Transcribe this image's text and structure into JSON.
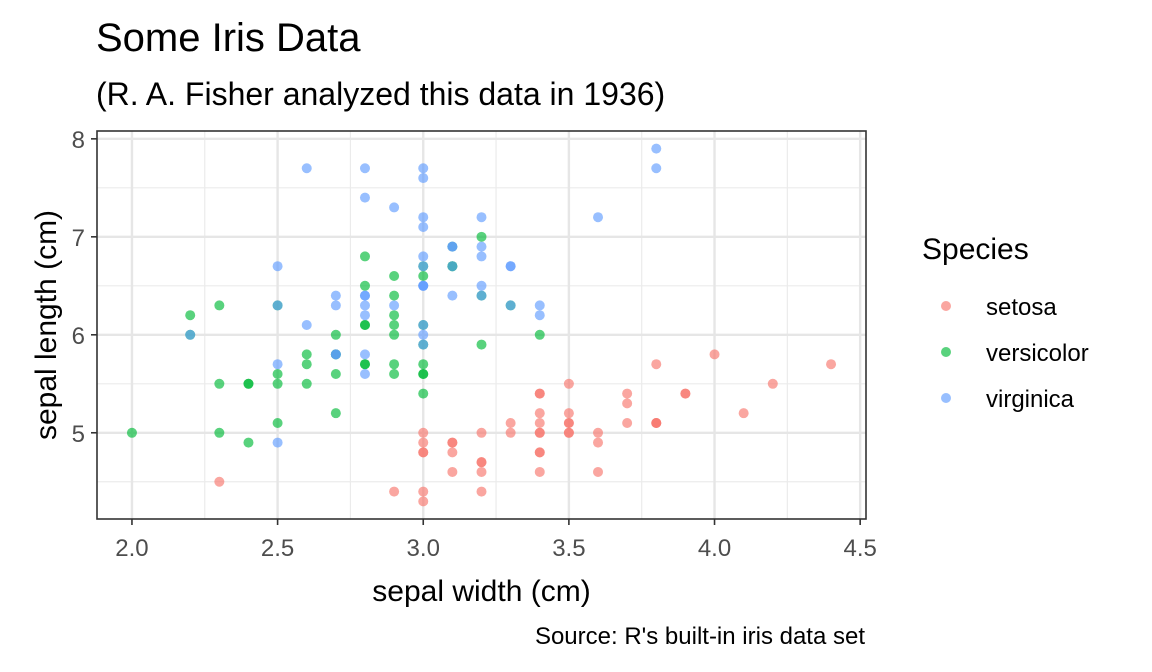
{
  "chart_data": {
    "type": "scatter",
    "title": "Some Iris Data",
    "subtitle": "(R. A. Fisher analyzed this data in 1936)",
    "caption": "Source: R's built-in iris data set",
    "xlabel": "sepal width (cm)",
    "ylabel": "sepal length (cm)",
    "xlim": [
      1.88,
      4.52
    ],
    "ylim": [
      4.12,
      8.08
    ],
    "x_ticks": [
      2.0,
      2.5,
      3.0,
      3.5,
      4.0,
      4.5
    ],
    "x_tick_labels": [
      "2.0",
      "2.5",
      "3.0",
      "3.5",
      "4.0",
      "4.5"
    ],
    "y_ticks": [
      5,
      6,
      7,
      8
    ],
    "y_tick_labels": [
      "5",
      "6",
      "7",
      "8"
    ],
    "grid": true,
    "legend": {
      "title": "Species",
      "position": "right"
    },
    "series": [
      {
        "name": "setosa",
        "color": "#F8766D",
        "x": [
          3.5,
          3.0,
          3.2,
          3.1,
          3.6,
          3.9,
          3.4,
          3.4,
          2.9,
          3.1,
          3.7,
          3.4,
          3.0,
          3.0,
          4.0,
          4.4,
          3.9,
          3.5,
          3.8,
          3.8,
          3.4,
          3.7,
          3.6,
          3.3,
          3.4,
          3.0,
          3.4,
          3.5,
          3.4,
          3.2,
          3.1,
          3.4,
          4.1,
          4.2,
          3.1,
          3.2,
          3.5,
          3.6,
          3.0,
          3.4,
          3.5,
          2.3,
          3.2,
          3.5,
          3.8,
          3.0,
          3.8,
          3.2,
          3.7,
          3.3
        ],
        "y": [
          5.1,
          4.9,
          4.7,
          4.6,
          5.0,
          5.4,
          4.6,
          5.0,
          4.4,
          4.9,
          5.4,
          4.8,
          4.8,
          4.3,
          5.8,
          5.7,
          5.4,
          5.1,
          5.7,
          5.1,
          5.4,
          5.1,
          4.6,
          5.1,
          4.8,
          5.0,
          5.0,
          5.2,
          5.2,
          4.7,
          4.8,
          5.4,
          5.2,
          5.5,
          4.9,
          5.0,
          5.5,
          4.9,
          4.4,
          5.1,
          5.0,
          4.5,
          4.4,
          5.0,
          5.1,
          4.8,
          5.1,
          4.6,
          5.3,
          5.0
        ]
      },
      {
        "name": "versicolor",
        "color": "#00BA38",
        "x": [
          3.2,
          3.2,
          3.1,
          2.3,
          2.8,
          2.8,
          3.3,
          2.4,
          2.9,
          2.7,
          2.0,
          3.0,
          2.2,
          2.9,
          2.9,
          3.1,
          3.0,
          2.7,
          2.2,
          2.5,
          3.2,
          2.8,
          2.5,
          2.8,
          2.9,
          3.0,
          2.8,
          3.0,
          2.9,
          2.6,
          2.4,
          2.4,
          2.7,
          2.7,
          3.0,
          3.4,
          3.1,
          2.3,
          3.0,
          2.5,
          2.6,
          3.0,
          2.6,
          2.3,
          2.7,
          3.0,
          2.9,
          2.9,
          2.5,
          2.8
        ],
        "y": [
          7.0,
          6.4,
          6.9,
          5.5,
          6.5,
          5.7,
          6.3,
          4.9,
          6.6,
          5.2,
          5.0,
          5.9,
          6.0,
          6.1,
          5.6,
          6.7,
          5.6,
          5.8,
          6.2,
          5.6,
          5.9,
          6.1,
          6.3,
          6.1,
          6.4,
          6.6,
          6.8,
          6.7,
          6.0,
          5.7,
          5.5,
          5.5,
          5.8,
          6.0,
          5.4,
          6.0,
          6.7,
          6.3,
          5.6,
          5.5,
          5.5,
          6.1,
          5.8,
          5.0,
          5.6,
          5.7,
          5.7,
          6.2,
          5.1,
          5.7
        ]
      },
      {
        "name": "virginica",
        "color": "#619CFF",
        "x": [
          3.3,
          2.7,
          3.0,
          2.9,
          3.0,
          3.0,
          2.5,
          2.9,
          2.5,
          3.6,
          3.2,
          2.7,
          3.0,
          2.5,
          2.8,
          3.2,
          3.0,
          3.8,
          2.6,
          2.2,
          3.2,
          2.8,
          2.8,
          2.7,
          3.3,
          3.2,
          2.8,
          3.0,
          2.8,
          3.0,
          2.8,
          3.8,
          2.8,
          2.8,
          2.6,
          3.0,
          3.4,
          3.1,
          3.0,
          3.1,
          3.1,
          3.1,
          2.7,
          3.2,
          3.3,
          3.0,
          2.5,
          3.0,
          3.4,
          3.0
        ],
        "y": [
          6.3,
          5.8,
          7.1,
          6.3,
          6.5,
          7.6,
          4.9,
          7.3,
          6.7,
          7.2,
          6.5,
          6.4,
          6.8,
          5.7,
          5.8,
          6.4,
          6.5,
          7.7,
          7.7,
          6.0,
          6.9,
          5.6,
          7.7,
          6.3,
          6.7,
          7.2,
          6.2,
          6.1,
          6.4,
          7.2,
          7.4,
          7.9,
          6.4,
          6.3,
          6.1,
          7.7,
          6.3,
          6.4,
          6.0,
          6.9,
          6.7,
          6.9,
          5.8,
          6.8,
          6.7,
          6.7,
          6.3,
          6.5,
          6.2,
          5.9
        ]
      }
    ]
  }
}
